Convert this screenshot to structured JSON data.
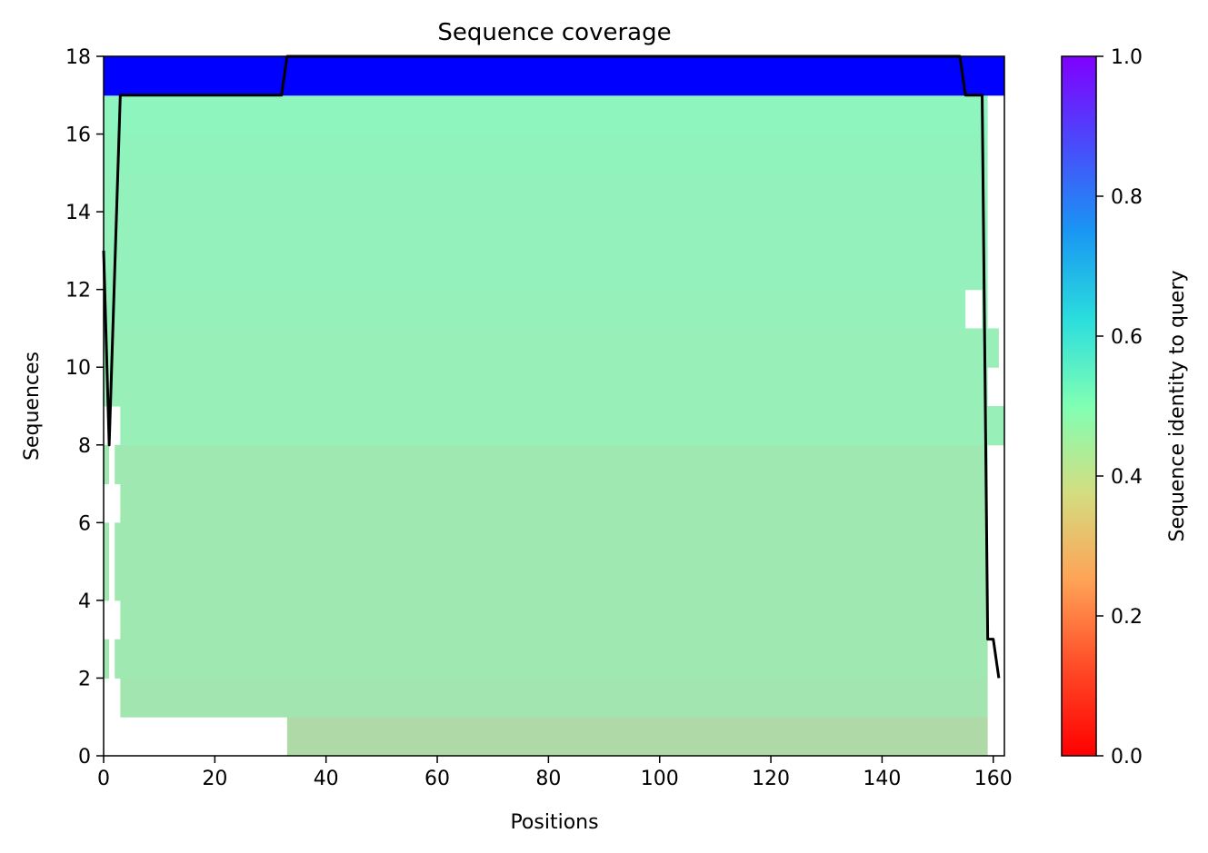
{
  "chart_data": {
    "type": "heatmap",
    "title": "Sequence coverage",
    "xlabel": "Positions",
    "ylabel": "Sequences",
    "xlim": [
      0,
      162
    ],
    "ylim": [
      0,
      18
    ],
    "xticks": [
      "0",
      "20",
      "40",
      "60",
      "80",
      "100",
      "120",
      "140",
      "160"
    ],
    "yticks": [
      "0",
      "2",
      "4",
      "6",
      "8",
      "10",
      "12",
      "14",
      "16",
      "18"
    ],
    "grid": false,
    "colormap": "rainbow_r",
    "colorbar": {
      "label": "Sequence identity to query",
      "range": [
        0,
        1
      ],
      "ticks": [
        "0.0",
        "0.2",
        "0.4",
        "0.6",
        "0.8",
        "1.0"
      ]
    },
    "rows": [
      {
        "row": 0,
        "identity": 0.27,
        "segments": [
          [
            33,
            159
          ]
        ]
      },
      {
        "row": 1,
        "identity": 0.31,
        "segments": [
          [
            3,
            159
          ]
        ]
      },
      {
        "row": 2,
        "identity": 0.32,
        "segments": [
          [
            0,
            1
          ],
          [
            2,
            159
          ]
        ]
      },
      {
        "row": 3,
        "identity": 0.32,
        "segments": [
          [
            3,
            159
          ]
        ]
      },
      {
        "row": 4,
        "identity": 0.32,
        "segments": [
          [
            0,
            1
          ],
          [
            2,
            159
          ]
        ]
      },
      {
        "row": 5,
        "identity": 0.32,
        "segments": [
          [
            0,
            1
          ],
          [
            2,
            159
          ]
        ]
      },
      {
        "row": 6,
        "identity": 0.32,
        "segments": [
          [
            3,
            159
          ]
        ]
      },
      {
        "row": 7,
        "identity": 0.32,
        "segments": [
          [
            0,
            1
          ],
          [
            2,
            159
          ]
        ]
      },
      {
        "row": 8,
        "identity": 0.35,
        "segments": [
          [
            3,
            162
          ]
        ]
      },
      {
        "row": 9,
        "identity": 0.35,
        "segments": [
          [
            0,
            159
          ]
        ]
      },
      {
        "row": 10,
        "identity": 0.35,
        "segments": [
          [
            0,
            161
          ]
        ]
      },
      {
        "row": 11,
        "identity": 0.355,
        "segments": [
          [
            0,
            155
          ],
          [
            158,
            159
          ]
        ]
      },
      {
        "row": 12,
        "identity": 0.36,
        "segments": [
          [
            0,
            159
          ]
        ]
      },
      {
        "row": 13,
        "identity": 0.36,
        "segments": [
          [
            0,
            159
          ]
        ]
      },
      {
        "row": 14,
        "identity": 0.365,
        "segments": [
          [
            0,
            159
          ]
        ]
      },
      {
        "row": 15,
        "identity": 0.37,
        "segments": [
          [
            0,
            159
          ]
        ]
      },
      {
        "row": 16,
        "identity": 0.38,
        "segments": [
          [
            0,
            159
          ]
        ]
      },
      {
        "row": 17,
        "identity": 1.0,
        "segments": [
          [
            0,
            162
          ]
        ]
      }
    ],
    "coverage_line": {
      "name": "coverage",
      "color": "#000000",
      "x": [
        0,
        1,
        3,
        32,
        33,
        154,
        155,
        158,
        159,
        160,
        161
      ],
      "y": [
        13,
        8,
        17,
        17,
        18,
        18,
        17,
        17,
        3,
        3,
        2
      ]
    }
  }
}
